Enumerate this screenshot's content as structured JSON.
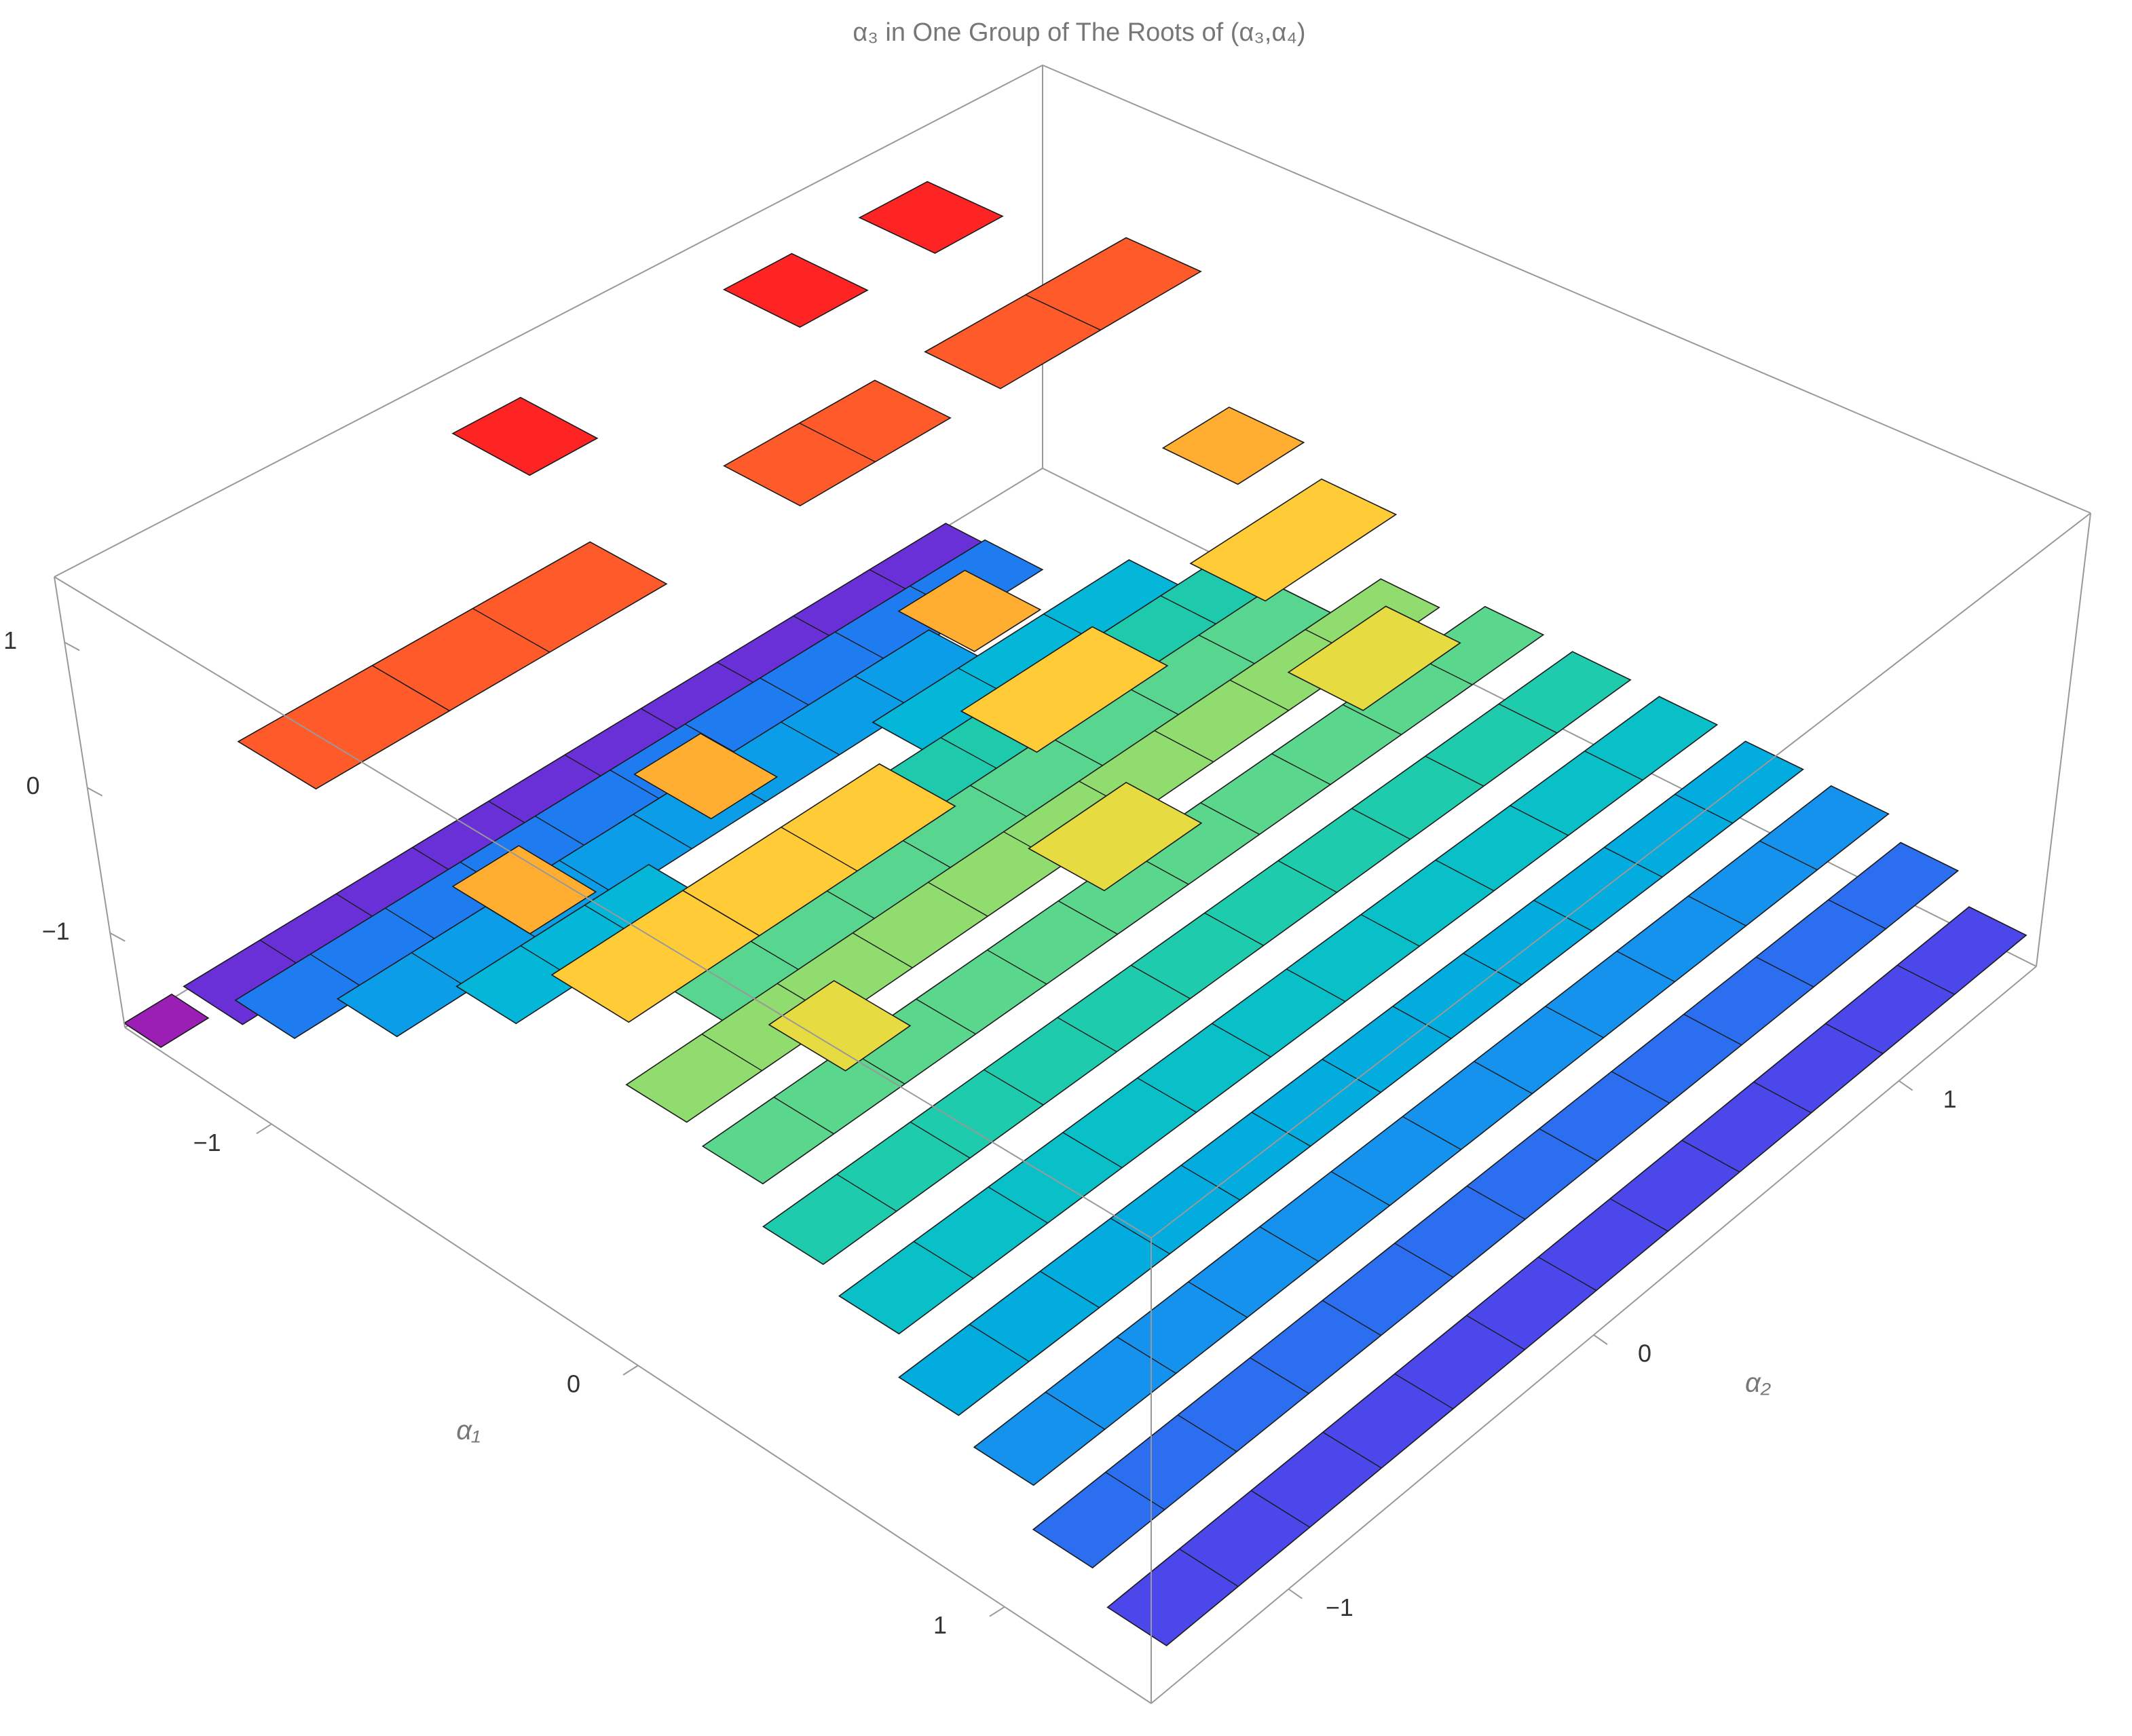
{
  "chart_data": {
    "type": "tiles3d",
    "title": "α₃ in One Group of The Roots of (α₃,α₄)",
    "xlabel": "α₁",
    "ylabel": "α₂",
    "xlim": [
      -1.4,
      1.4
    ],
    "ylim": [
      -1.45,
      1.45
    ],
    "zlim": [
      -1.65,
      1.45
    ],
    "xticks": [
      {
        "value": -1,
        "label": "−1"
      },
      0,
      1
    ],
    "yticks": [
      {
        "value": -1,
        "label": "−1"
      },
      0,
      1
    ],
    "zticks": [
      {
        "value": -1,
        "label": "−1"
      },
      0,
      1
    ],
    "tiles": [
      {
        "a1": [
          1.24,
          1.4
        ],
        "a2": [
          -1.4,
          1.4
        ],
        "z": -1.35,
        "color": "#4b47ea"
      },
      {
        "a1": [
          1.04,
          1.2
        ],
        "a2": [
          -1.4,
          1.4
        ],
        "z": -1.15,
        "color": "#2b6ff0"
      },
      {
        "a1": [
          0.84,
          1.0
        ],
        "a2": [
          -1.35,
          1.4
        ],
        "z": -1.0,
        "color": "#1592ee"
      },
      {
        "a1": [
          0.64,
          0.8
        ],
        "a2": [
          -1.35,
          1.35
        ],
        "z": -0.85,
        "color": "#02acdf"
      },
      {
        "a1": [
          0.44,
          0.6
        ],
        "a2": [
          -1.3,
          1.3
        ],
        "z": -0.7,
        "color": "#0ac0c8"
      },
      {
        "a1": [
          0.24,
          0.4
        ],
        "a2": [
          -1.3,
          1.25
        ],
        "z": -0.55,
        "color": "#1ecbad"
      },
      {
        "a1": [
          0.04,
          0.2
        ],
        "a2": [
          -1.25,
          1.2
        ],
        "z": -0.4,
        "color": "#5bd68d"
      },
      {
        "a1": [
          -0.16,
          0.0
        ],
        "a2": [
          -1.25,
          1.1
        ],
        "z": -0.3,
        "color": "#90dc6e"
      },
      {
        "a1": [
          -0.36,
          -0.2
        ],
        "a2": [
          -0.9,
          1.0
        ],
        "z": -0.45,
        "color": "#58d58f"
      },
      {
        "a1": [
          -0.56,
          -0.4
        ],
        "a2": [
          -0.5,
          1.1
        ],
        "z": -0.6,
        "color": "#1fc9ac"
      },
      {
        "a1": [
          -0.76,
          -0.6
        ],
        "a2": [
          -1.1,
          -0.5
        ],
        "z": -0.8,
        "color": "#04b6d8"
      },
      {
        "a1": [
          -0.76,
          -0.6
        ],
        "a2": [
          0.2,
          1.0
        ],
        "z": -0.8,
        "color": "#04b6d8"
      },
      {
        "a1": [
          -0.96,
          -0.8
        ],
        "a2": [
          -1.25,
          0.6
        ],
        "z": -1.0,
        "color": "#0c9de9"
      },
      {
        "a1": [
          -1.16,
          -1.0
        ],
        "a2": [
          -1.35,
          1.0
        ],
        "z": -1.2,
        "color": "#1f7cf0"
      },
      {
        "a1": [
          -1.36,
          -1.2
        ],
        "a2": [
          -1.3,
          1.1
        ],
        "z": -1.5,
        "color": "#6a30d8"
      },
      {
        "a1": [
          -1.4,
          -1.3
        ],
        "a2": [
          -1.45,
          -1.3
        ],
        "z": -1.62,
        "color": "#9b1fb5"
      },
      {
        "a1": [
          -1.3,
          -1.1
        ],
        "a2": [
          0.8,
          1.0
        ],
        "z": 1.3,
        "color": "#ff2424"
      },
      {
        "a1": [
          -1.3,
          -1.1
        ],
        "a2": [
          0.4,
          0.6
        ],
        "z": 1.3,
        "color": "#ff2424"
      },
      {
        "a1": [
          -1.3,
          -1.1
        ],
        "a2": [
          -0.4,
          -0.2
        ],
        "z": 1.3,
        "color": "#ff2424"
      },
      {
        "a1": [
          -0.95,
          -0.75
        ],
        "a2": [
          0.6,
          1.2
        ],
        "z": 1.05,
        "color": "#ff5a2a"
      },
      {
        "a1": [
          -0.95,
          -0.75
        ],
        "a2": [
          0.0,
          0.45
        ],
        "z": 1.05,
        "color": "#ff5a2a"
      },
      {
        "a1": [
          -0.95,
          -0.75
        ],
        "a2": [
          -1.1,
          -0.4
        ],
        "z": 1.05,
        "color": "#ff5a2a"
      },
      {
        "a1": [
          -0.95,
          -0.75
        ],
        "a2": [
          -1.45,
          -1.05
        ],
        "z": 1.05,
        "color": "#ff5a2a"
      },
      {
        "a1": [
          -0.45,
          -0.25
        ],
        "a2": [
          0.75,
          0.95
        ],
        "z": 0.8,
        "color": "#ffae32"
      },
      {
        "a1": [
          -0.45,
          -0.25
        ],
        "a2": [
          -0.05,
          0.15
        ],
        "z": 0.8,
        "color": "#ffae32"
      },
      {
        "a1": [
          -0.45,
          -0.25
        ],
        "a2": [
          -0.85,
          -0.65
        ],
        "z": 0.8,
        "color": "#ffae32"
      },
      {
        "a1": [
          -0.45,
          -0.25
        ],
        "a2": [
          -1.4,
          -1.2
        ],
        "z": 0.8,
        "color": "#ffae32"
      },
      {
        "a1": [
          -0.2,
          0.0
        ],
        "a2": [
          0.55,
          0.95
        ],
        "z": 0.6,
        "color": "#ffcc38"
      },
      {
        "a1": [
          -0.2,
          0.0
        ],
        "a2": [
          -0.15,
          0.25
        ],
        "z": 0.6,
        "color": "#ffcc38"
      },
      {
        "a1": [
          -0.2,
          0.0
        ],
        "a2": [
          -1.0,
          -0.4
        ],
        "z": 0.6,
        "color": "#ffcc38"
      },
      {
        "a1": [
          -0.2,
          0.0
        ],
        "a2": [
          -1.4,
          -1.0
        ],
        "z": 0.6,
        "color": "#ffcc38"
      },
      {
        "a1": [
          0.15,
          0.35
        ],
        "a2": [
          0.45,
          0.75
        ],
        "z": 0.45,
        "color": "#e6dc42"
      },
      {
        "a1": [
          0.15,
          0.35
        ],
        "a2": [
          -0.35,
          -0.05
        ],
        "z": 0.45,
        "color": "#e6dc42"
      },
      {
        "a1": [
          0.15,
          0.35
        ],
        "a2": [
          -1.15,
          -0.95
        ],
        "z": 0.45,
        "color": "#e6dc42"
      }
    ]
  }
}
